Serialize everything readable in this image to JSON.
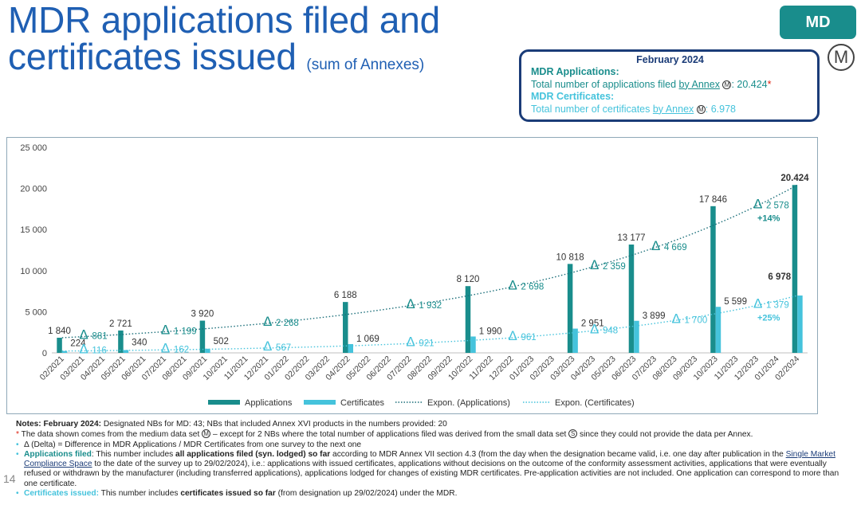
{
  "title": {
    "line1": "MDR applications filed and",
    "line2": "certificates issued",
    "sub": "(sum of Annexes)"
  },
  "badge": "MD",
  "logo_letter": "M",
  "summary": {
    "heading": "February 2024",
    "apps_heading": "MDR Applications:",
    "apps_text_pre": "Total number of applications filed ",
    "apps_link": "by Annex",
    "apps_circle": "M",
    "apps_value": ": 20.424",
    "apps_star": "*",
    "cert_heading": "MDR Certificates:",
    "cert_text_pre": "Total number of certificates ",
    "cert_link": "by Annex",
    "cert_circle": "M",
    "cert_value": ": 6.978"
  },
  "chart_data": {
    "type": "bar",
    "categories": [
      "02/2021",
      "03/2021",
      "04/2021",
      "05/2021",
      "06/2021",
      "07/2021",
      "08/2021",
      "09/2021",
      "10/2021",
      "11/2021",
      "12/2021",
      "01/2022",
      "02/2022",
      "03/2022",
      "04/2022",
      "05/2022",
      "06/2022",
      "07/2022",
      "08/2022",
      "09/2022",
      "10/2022",
      "11/2022",
      "12/2022",
      "01/2023",
      "02/2023",
      "03/2023",
      "04/2023",
      "05/2023",
      "06/2023",
      "07/2023",
      "08/2023",
      "09/2023",
      "10/2023",
      "11/2023",
      "12/2023",
      "01/2024",
      "02/2024"
    ],
    "series": [
      {
        "name": "Applications",
        "color": "#198d8c",
        "points": [
          {
            "cat": "02/2021",
            "value": 1840,
            "label": "1 840"
          },
          {
            "cat": "05/2021",
            "value": 2721,
            "label": "2 721"
          },
          {
            "cat": "09/2021",
            "value": 3920,
            "label": "3 920"
          },
          {
            "cat": "04/2022",
            "value": 6188,
            "label": "6 188"
          },
          {
            "cat": "10/2022",
            "value": 8120,
            "label": "8 120"
          },
          {
            "cat": "03/2023",
            "value": 10818,
            "label": "10 818"
          },
          {
            "cat": "06/2023",
            "value": 13177,
            "label": "13 177"
          },
          {
            "cat": "10/2023",
            "value": 17846,
            "label": "17 846"
          },
          {
            "cat": "02/2024",
            "value": 20424,
            "label": "20.424"
          }
        ]
      },
      {
        "name": "Certificates",
        "color": "#45c3dc",
        "points": [
          {
            "cat": "02/2021",
            "value": 224,
            "label": "224"
          },
          {
            "cat": "05/2021",
            "value": 340,
            "label": "340"
          },
          {
            "cat": "09/2021",
            "value": 502,
            "label": "502"
          },
          {
            "cat": "04/2022",
            "value": 1069,
            "label": "1 069"
          },
          {
            "cat": "10/2022",
            "value": 1990,
            "label": "1 990"
          },
          {
            "cat": "03/2023",
            "value": 2951,
            "label": "2 951"
          },
          {
            "cat": "06/2023",
            "value": 3899,
            "label": "3 899"
          },
          {
            "cat": "10/2023",
            "value": 5599,
            "label": "5 599"
          },
          {
            "cat": "02/2024",
            "value": 6978,
            "label": "6 978"
          }
        ]
      }
    ],
    "deltas": [
      {
        "series": "Applications",
        "cat": "03/2021",
        "value": 881,
        "label": "881"
      },
      {
        "series": "Applications",
        "cat": "07/2021",
        "value": 1199,
        "label": "1 199"
      },
      {
        "series": "Applications",
        "cat": "12/2021",
        "value": 2268,
        "label": "2 268"
      },
      {
        "series": "Applications",
        "cat": "07/2022",
        "value": 1932,
        "label": "1 932"
      },
      {
        "series": "Applications",
        "cat": "12/2022",
        "value": 2698,
        "label": "2 698"
      },
      {
        "series": "Applications",
        "cat": "04/2023",
        "value": 2359,
        "label": "2 359"
      },
      {
        "series": "Applications",
        "cat": "07/2023",
        "value": 4669,
        "label": "4 669"
      },
      {
        "series": "Applications",
        "cat": "12/2023",
        "value": 2578,
        "label": "2 578",
        "extra": "+14%"
      },
      {
        "series": "Certificates",
        "cat": "03/2021",
        "value": 116,
        "label": "116"
      },
      {
        "series": "Certificates",
        "cat": "07/2021",
        "value": 162,
        "label": "162"
      },
      {
        "series": "Certificates",
        "cat": "12/2021",
        "value": 567,
        "label": "567"
      },
      {
        "series": "Certificates",
        "cat": "07/2022",
        "value": 921,
        "label": "921"
      },
      {
        "series": "Certificates",
        "cat": "12/2022",
        "value": 961,
        "label": "961"
      },
      {
        "series": "Certificates",
        "cat": "04/2023",
        "value": 948,
        "label": "948"
      },
      {
        "series": "Certificates",
        "cat": "08/2023",
        "value": 1700,
        "label": "1 700"
      },
      {
        "series": "Certificates",
        "cat": "12/2023",
        "value": 1379,
        "label": "1 379",
        "extra": "+25%"
      }
    ],
    "delta_symbol": "Δ",
    "trendlines": [
      {
        "name": "Expon. (Applications)",
        "series": "Applications",
        "color": "#1b6f7a"
      },
      {
        "name": "Expon. (Certificates)",
        "series": "Certificates",
        "color": "#45c3dc"
      }
    ],
    "yaxis": {
      "min": 0,
      "max": 25000,
      "ticks": [
        0,
        5000,
        10000,
        15000,
        20000,
        25000
      ],
      "tick_labels": [
        "0",
        "5 000",
        "10 000",
        "15 000",
        "20 000",
        "25 000"
      ]
    },
    "legend": [
      "Applications",
      "Certificates",
      "Expon. (Applications)",
      "Expon. (Certificates)"
    ],
    "legend_position": "bottom",
    "grid": false
  },
  "notes": {
    "line1_bold": "Notes: February 2024:",
    "line1_rest": " Designated NBs for MD: 43; NBs that included Annex XVI products in the numbers provided: 20",
    "line2_star": "*",
    "line2_pre": " The data shown comes from the medium data set ",
    "line2_c1": "M",
    "line2_mid": " – except for 2 NBs where the total number of applications filed was derived from the small data set ",
    "line2_c2": "S",
    "line2_post": " since they could not provide the data per Annex.",
    "line3": "Δ (Delta) = Difference in MDR Applications / MDR Certificates from one survey to the next one",
    "line4_head": "Applications filed",
    "line4_a": ": This number includes ",
    "line4_bold": "all applications filed (syn. lodged) so far",
    "line4_b": " according to MDR Annex VII section 4.3 (from the day when the designation became valid, i.e. one day after publication in the ",
    "line4_link": "Single Market Compliance Space",
    "line4_c": " to the date of the survey up to 29/02/2024), i.e.: applications with issued certificates, applications without decisions on the outcome of the conformity assessment activities, applications that were eventually refused or withdrawn by the manufacturer (including transferred applications), applications lodged for changes of existing MDR certificates. Pre-application activities are not included. One application can correspond to more than one certificate.",
    "line5_head": "Certificates issued:",
    "line5_a": " This number includes ",
    "line5_bold": "certificates issued so far",
    "line5_b": " (from designation up 29/02/2024) under the MDR."
  },
  "page_number": "14"
}
